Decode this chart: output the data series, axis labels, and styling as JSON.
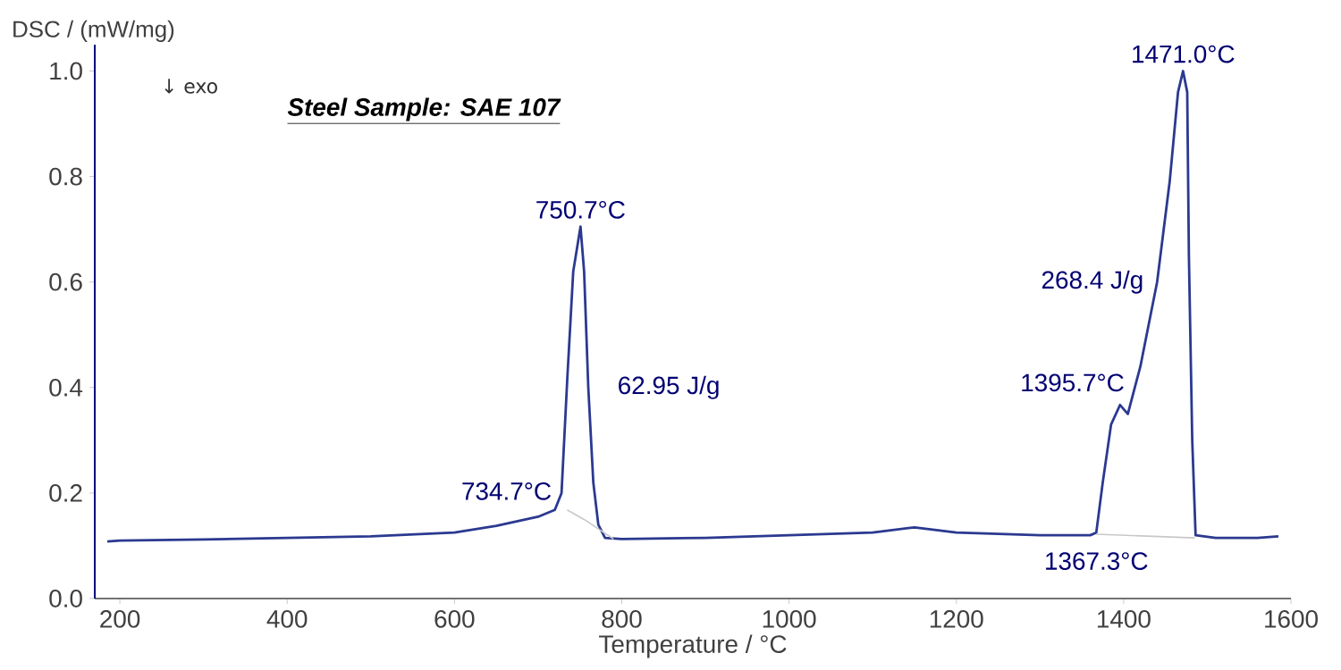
{
  "chart_data": {
    "type": "line",
    "title": "Steel Sample: SAE 107",
    "xlabel": "Temperature / °C",
    "ylabel": "DSC / (mW/mg)",
    "xlim": [
      170,
      1600
    ],
    "xticks": [
      200,
      400,
      600,
      800,
      1000,
      1200,
      1400,
      1600
    ],
    "ylim": [
      0,
      1.05
    ],
    "yticks": [
      {
        "value": 0,
        "label": "0.0"
      },
      0.2,
      0.4,
      0.6,
      0.8,
      {
        "value": 1,
        "label": "1.0"
      }
    ],
    "grid": false,
    "marker": "none",
    "line_style": "solid",
    "series": [
      {
        "color": "#2b3990",
        "x": [
          185,
          200,
          300,
          400,
          500,
          600,
          650,
          700,
          720,
          728,
          735,
          742,
          750.7,
          755,
          760,
          766,
          772,
          780,
          800,
          900,
          1000,
          1100,
          1150,
          1200,
          1300,
          1360,
          1367.3,
          1375,
          1385,
          1395.7,
          1405,
          1420,
          1440,
          1455,
          1465,
          1471,
          1476,
          1478,
          1482,
          1486,
          1510,
          1560,
          1585
        ],
        "values": [
          0.108,
          0.11,
          0.112,
          0.115,
          0.118,
          0.125,
          0.138,
          0.155,
          0.168,
          0.2,
          0.42,
          0.62,
          0.705,
          0.62,
          0.4,
          0.22,
          0.14,
          0.115,
          0.113,
          0.115,
          0.12,
          0.125,
          0.135,
          0.125,
          0.12,
          0.12,
          0.125,
          0.22,
          0.33,
          0.367,
          0.35,
          0.44,
          0.6,
          0.79,
          0.96,
          1.0,
          0.96,
          0.65,
          0.3,
          0.12,
          0.115,
          0.115,
          0.118
        ]
      },
      {
        "color": "#c8c8cc",
        "x": [
          734.7,
          755,
          790,
          1000,
          1367.3,
          1485
        ],
        "values": [
          0.168,
          0.15,
          0.113,
          null,
          0.122,
          0.115
        ]
      }
    ],
    "annotations": [
      {
        "text": "750.7°C",
        "x": 750.7,
        "y": 0.705
      },
      {
        "text": "734.7°C",
        "x": 728,
        "y": 0.168
      },
      {
        "text": "62.95 J/g",
        "x": 766,
        "y": 0.4
      },
      {
        "text": "1471.0°C",
        "x": 1471,
        "y": 1.0
      },
      {
        "text": "268.4 J/g",
        "x": 1440,
        "y": 0.6
      },
      {
        "text": "1395.7°C",
        "x": 1395.7,
        "y": 0.367
      },
      {
        "text": "1367.3°C",
        "x": 1367.3,
        "y": 0.12
      },
      "↓ exo"
    ]
  }
}
